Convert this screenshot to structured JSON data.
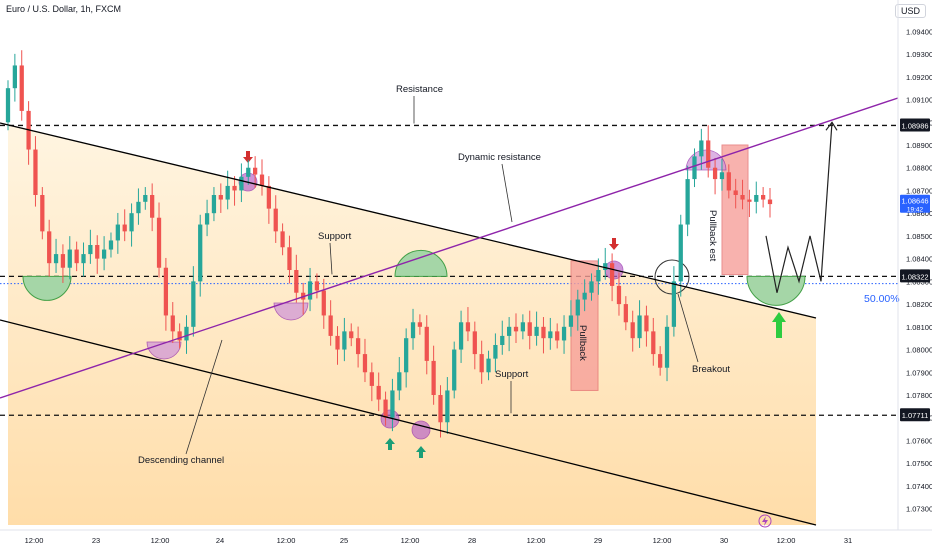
{
  "header": {
    "instrument": "Euro / U.S. Dollar, 1h, FXCM",
    "currency": "USD"
  },
  "annotations": {
    "resistance": "Resistance",
    "dynamic_resistance": "Dynamic resistance",
    "support_upper": "Support",
    "support_lower": "Support",
    "descending_channel": "Descending channel",
    "breakout": "Breakout",
    "pullback_1": "Pullback",
    "pullback_2": "Pullback est",
    "fib_level": "50.00%"
  },
  "colors": {
    "bull": "#26a69a",
    "bear": "#ef5350",
    "trend": "#8e24aa",
    "channel": "#000000",
    "zone_fill": "#ffe0a3",
    "pullback_fill": "#f7a09a",
    "green_half": "#a5d6a7",
    "purple_circle": "#b39ddb",
    "arrow_green": "#1b9e77",
    "arrow_red": "#d32f2f"
  },
  "chart_data": {
    "type": "candlestick",
    "title": "Euro / U.S. Dollar, 1h, FXCM",
    "y_axis": {
      "ticks": [
        "1.09400",
        "1.09300",
        "1.09200",
        "1.09100",
        "1.09000",
        "1.08900",
        "1.08800",
        "1.08700",
        "1.08600",
        "1.08500",
        "1.08400",
        "1.08300",
        "1.08200",
        "1.08100",
        "1.08000",
        "1.07900",
        "1.07800",
        "1.07700",
        "1.07600",
        "1.07500",
        "1.07400",
        "1.07300"
      ],
      "range": [
        1.0725,
        1.0945
      ]
    },
    "x_axis": {
      "ticks": [
        "12:00",
        "23",
        "12:00",
        "24",
        "12:00",
        "25",
        "12:00",
        "28",
        "12:00",
        "29",
        "12:00",
        "30",
        "12:00",
        "31"
      ]
    },
    "levels": [
      {
        "label": "1.08986",
        "value": 1.08986,
        "style": "dashed"
      },
      {
        "label": "1.08322",
        "value": 1.08322,
        "style": "dashed"
      },
      {
        "label": "1.07711",
        "value": 1.07711,
        "style": "dashed"
      }
    ],
    "price_tag": {
      "label": "1.08646",
      "sub": "19:42",
      "value": 1.08646
    },
    "closes": [
      1.0915,
      1.0925,
      1.0905,
      1.0888,
      1.0868,
      1.0852,
      1.0838,
      1.0842,
      1.0836,
      1.0844,
      1.0838,
      1.0842,
      1.0846,
      1.084,
      1.0844,
      1.0848,
      1.0855,
      1.0852,
      1.086,
      1.0865,
      1.0868,
      1.0858,
      1.0836,
      1.0815,
      1.0808,
      1.0804,
      1.081,
      1.083,
      1.0855,
      1.086,
      1.0868,
      1.0866,
      1.0872,
      1.087,
      1.0876,
      1.088,
      1.0877,
      1.0872,
      1.0862,
      1.0852,
      1.0845,
      1.0835,
      1.0825,
      1.0822,
      1.083,
      1.0826,
      1.0815,
      1.0806,
      1.08,
      1.0808,
      1.0805,
      1.0798,
      1.079,
      1.0784,
      1.0778,
      1.077,
      1.0782,
      1.079,
      1.0805,
      1.0812,
      1.081,
      1.0795,
      1.078,
      1.0768,
      1.0782,
      1.08,
      1.0812,
      1.0808,
      1.0798,
      1.079,
      1.0796,
      1.0802,
      1.0806,
      1.081,
      1.0808,
      1.0812,
      1.0806,
      1.081,
      1.0805,
      1.0808,
      1.0804,
      1.081,
      1.0815,
      1.0822,
      1.0825,
      1.083,
      1.0835,
      1.0838,
      1.0828,
      1.082,
      1.0812,
      1.0805,
      1.0815,
      1.0808,
      1.0798,
      1.0792,
      1.081,
      1.083,
      1.0855,
      1.0875,
      1.0885,
      1.0892,
      1.088,
      1.0875,
      1.0878,
      1.087,
      1.0868,
      1.0866,
      1.0865,
      1.0868,
      1.0866,
      1.0864
    ],
    "projection": [
      1.085,
      1.0825,
      1.0845,
      1.083,
      1.085,
      1.083,
      1.09
    ]
  }
}
